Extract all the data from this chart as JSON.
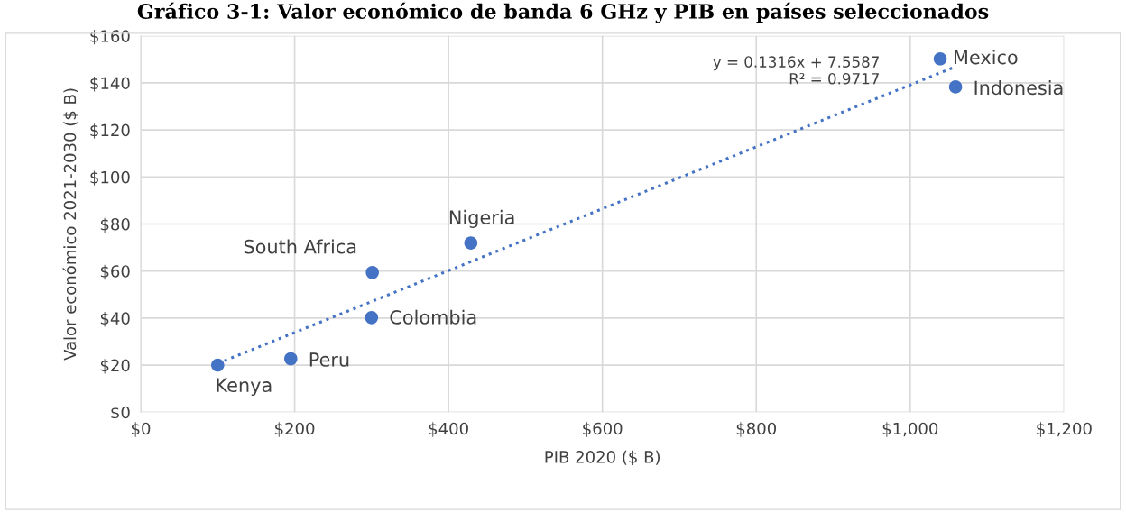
{
  "chart_data": {
    "type": "scatter",
    "title": "Gráfico 3-1: Valor económico de banda 6 GHz y PIB en países seleccionados",
    "xlabel": "PIB 2020 ($ B)",
    "ylabel": "Valor económico 2021-2030 ($ B)",
    "series": [
      {
        "color": "#4472c4",
        "marker": "circle",
        "x": [
          1039,
          1059,
          429,
          301,
          300,
          195,
          100
        ],
        "values": [
          150.2,
          138.3,
          71.9,
          59.4,
          40.2,
          22.7,
          20
        ]
      },
      {
        "type": "line",
        "color": "#4472c4",
        "line_style": "dotted",
        "x": [
          100,
          1059
        ],
        "values": [
          20.7,
          146.9
        ]
      }
    ],
    "annotations": [
      {
        "text": "Mexico",
        "x": 1039,
        "y": 150.2
      },
      {
        "text": "Indonesia",
        "x": 1059,
        "y": 138.3
      },
      {
        "text": "Nigeria",
        "x": 429,
        "y": 71.9
      },
      {
        "text": "South Africa",
        "x": 301,
        "y": 59.4
      },
      {
        "text": "Colombia",
        "x": 300,
        "y": 40.2
      },
      {
        "text": "Peru",
        "x": 195,
        "y": 22.7
      },
      {
        "text": "Kenya",
        "x": 100,
        "y": 20
      },
      "y = 0.1316x + 7.5587\nR² = 0.9717"
    ],
    "xlim": [
      0,
      1200
    ],
    "xticks": [
      {
        "value": 0,
        "label": "$0"
      },
      {
        "value": 200,
        "label": "$200"
      },
      {
        "value": 400,
        "label": "$400"
      },
      {
        "value": 600,
        "label": "$600"
      },
      {
        "value": 800,
        "label": "$800"
      },
      {
        "value": 1000,
        "label": "$1,000"
      },
      {
        "value": 1200,
        "label": "$1,200"
      }
    ],
    "ylim": [
      0,
      160
    ],
    "yticks": [
      {
        "value": 0,
        "label": "$0"
      },
      {
        "value": 20,
        "label": "$20"
      },
      {
        "value": 40,
        "label": "$40"
      },
      {
        "value": 60,
        "label": "$60"
      },
      {
        "value": 80,
        "label": "$80"
      },
      {
        "value": 100,
        "label": "$100"
      },
      {
        "value": 120,
        "label": "$120"
      },
      {
        "value": 140,
        "label": "$140"
      },
      {
        "value": 160,
        "label": "$160"
      }
    ],
    "grid": true
  }
}
